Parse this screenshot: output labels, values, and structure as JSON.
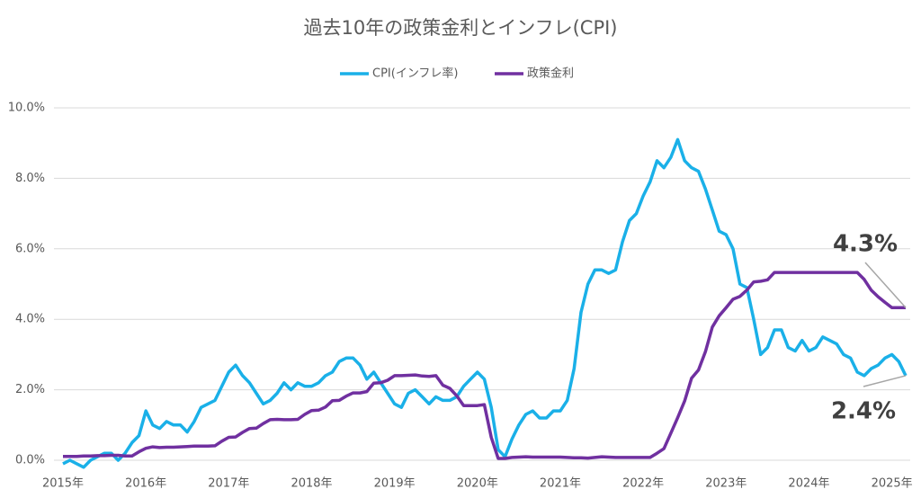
{
  "chart_data": {
    "type": "line",
    "title": "過去10年の政策金利とインフレ(CPI)",
    "categories": [
      "2015年",
      null,
      null,
      null,
      null,
      null,
      null,
      null,
      null,
      null,
      null,
      null,
      "2016年",
      null,
      null,
      null,
      null,
      null,
      null,
      null,
      null,
      null,
      null,
      null,
      "2017年",
      null,
      null,
      null,
      null,
      null,
      null,
      null,
      null,
      null,
      null,
      null,
      "2018年",
      null,
      null,
      null,
      null,
      null,
      null,
      null,
      null,
      null,
      null,
      null,
      "2019年",
      null,
      null,
      null,
      null,
      null,
      null,
      null,
      null,
      null,
      null,
      null,
      "2020年",
      null,
      null,
      null,
      null,
      null,
      null,
      null,
      null,
      null,
      null,
      null,
      "2021年",
      null,
      null,
      null,
      null,
      null,
      null,
      null,
      null,
      null,
      null,
      null,
      "2022年",
      null,
      null,
      null,
      null,
      null,
      null,
      null,
      null,
      null,
      null,
      null,
      "2023年",
      null,
      null,
      null,
      null,
      null,
      null,
      null,
      null,
      null,
      null,
      null,
      "2024年",
      null,
      null,
      null,
      null,
      null,
      null,
      null,
      null,
      null,
      null,
      null,
      "2025年",
      null,
      null
    ],
    "series": [
      {
        "name": "CPI(インフレ率)",
        "color": "#1ab0e8",
        "values": [
          -0.1,
          0.0,
          -0.1,
          -0.2,
          0.0,
          0.1,
          0.2,
          0.2,
          0.0,
          0.2,
          0.5,
          0.7,
          1.4,
          1.0,
          0.9,
          1.1,
          1.0,
          1.0,
          0.8,
          1.1,
          1.5,
          1.6,
          1.7,
          2.1,
          2.5,
          2.7,
          2.4,
          2.2,
          1.9,
          1.6,
          1.7,
          1.9,
          2.2,
          2.0,
          2.2,
          2.1,
          2.1,
          2.2,
          2.4,
          2.5,
          2.8,
          2.9,
          2.9,
          2.7,
          2.3,
          2.5,
          2.2,
          1.9,
          1.6,
          1.5,
          1.9,
          2.0,
          1.8,
          1.6,
          1.8,
          1.7,
          1.7,
          1.8,
          2.1,
          2.3,
          2.5,
          2.3,
          1.5,
          0.3,
          0.1,
          0.6,
          1.0,
          1.3,
          1.4,
          1.2,
          1.2,
          1.4,
          1.4,
          1.7,
          2.6,
          4.2,
          5.0,
          5.4,
          5.4,
          5.3,
          5.4,
          6.2,
          6.8,
          7.0,
          7.5,
          7.9,
          8.5,
          8.3,
          8.6,
          9.1,
          8.5,
          8.3,
          8.2,
          7.7,
          7.1,
          6.5,
          6.4,
          6.0,
          5.0,
          4.9,
          4.0,
          3.0,
          3.2,
          3.7,
          3.7,
          3.2,
          3.1,
          3.4,
          3.1,
          3.2,
          3.5,
          3.4,
          3.3,
          3.0,
          2.9,
          2.5,
          2.4,
          2.6,
          2.7,
          2.9,
          3.0,
          2.8,
          2.4
        ]
      },
      {
        "name": "政策金利",
        "color": "#7030a0",
        "values": [
          0.11,
          0.11,
          0.11,
          0.12,
          0.12,
          0.13,
          0.13,
          0.14,
          0.14,
          0.12,
          0.12,
          0.24,
          0.34,
          0.38,
          0.36,
          0.37,
          0.37,
          0.38,
          0.39,
          0.4,
          0.4,
          0.4,
          0.41,
          0.54,
          0.65,
          0.66,
          0.79,
          0.9,
          0.91,
          1.04,
          1.15,
          1.16,
          1.15,
          1.15,
          1.16,
          1.3,
          1.41,
          1.42,
          1.51,
          1.69,
          1.7,
          1.82,
          1.91,
          1.91,
          1.95,
          2.19,
          2.2,
          2.27,
          2.4,
          2.4,
          2.41,
          2.42,
          2.39,
          2.38,
          2.4,
          2.13,
          2.04,
          1.83,
          1.55,
          1.55,
          1.55,
          1.58,
          0.65,
          0.05,
          0.05,
          0.08,
          0.09,
          0.1,
          0.09,
          0.09,
          0.09,
          0.09,
          0.09,
          0.08,
          0.07,
          0.07,
          0.06,
          0.08,
          0.1,
          0.09,
          0.08,
          0.08,
          0.08,
          0.08,
          0.08,
          0.08,
          0.2,
          0.33,
          0.77,
          1.21,
          1.68,
          2.33,
          2.56,
          3.08,
          3.78,
          4.1,
          4.33,
          4.57,
          4.65,
          4.83,
          5.06,
          5.08,
          5.12,
          5.33,
          5.33,
          5.33,
          5.33,
          5.33,
          5.33,
          5.33,
          5.33,
          5.33,
          5.33,
          5.33,
          5.33,
          5.33,
          5.13,
          4.83,
          4.64,
          4.48,
          4.33,
          4.33,
          4.33
        ]
      }
    ],
    "ylim": [
      0,
      10
    ],
    "yticks": [
      {
        "value": 0,
        "label": "0.0%"
      },
      {
        "value": 2,
        "label": "2.0%"
      },
      {
        "value": 4,
        "label": "4.0%"
      },
      {
        "value": 6,
        "label": "6.0%"
      },
      {
        "value": 8,
        "label": "8.0%"
      },
      {
        "value": 10,
        "label": "10.0%"
      }
    ],
    "grid": true,
    "legend": "top",
    "annotations": [
      {
        "text": "4.3%",
        "series": 1
      },
      {
        "text": "2.4%",
        "series": 0
      }
    ]
  }
}
